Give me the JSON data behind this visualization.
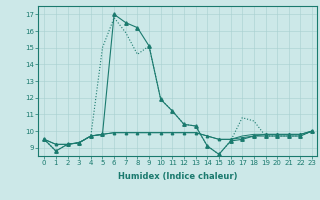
{
  "xlabel": "Humidex (Indice chaleur)",
  "bg_color": "#cce8e8",
  "line_color": "#1a7a6e",
  "xlim": [
    -0.5,
    23.4
  ],
  "ylim": [
    8.5,
    17.5
  ],
  "yticks": [
    9,
    10,
    11,
    12,
    13,
    14,
    15,
    16,
    17
  ],
  "xticks": [
    0,
    1,
    2,
    3,
    4,
    5,
    6,
    7,
    8,
    9,
    10,
    11,
    12,
    13,
    14,
    15,
    16,
    17,
    18,
    19,
    20,
    21,
    22,
    23
  ],
  "series": [
    {
      "x": [
        0,
        1,
        2,
        3,
        4,
        5,
        6,
        7,
        8,
        9,
        10,
        11,
        12,
        13,
        14,
        15,
        16,
        17,
        18,
        19,
        20,
        21,
        22,
        23
      ],
      "y": [
        9.5,
        8.8,
        9.2,
        9.3,
        9.7,
        9.8,
        17.0,
        16.5,
        16.2,
        15.1,
        11.9,
        11.2,
        10.4,
        10.3,
        9.1,
        8.6,
        9.4,
        9.5,
        9.7,
        9.7,
        9.7,
        9.7,
        9.7,
        10.0
      ],
      "style": "-",
      "marker": "^",
      "markersize": 2.5,
      "linewidth": 0.8
    },
    {
      "x": [
        0,
        1,
        2,
        3,
        4,
        5,
        6,
        7,
        8,
        9,
        10,
        11,
        12,
        13,
        14,
        15,
        16,
        17,
        18,
        19,
        20,
        21,
        22,
        23
      ],
      "y": [
        9.5,
        8.8,
        9.2,
        9.3,
        9.7,
        15.0,
        16.8,
        15.9,
        14.6,
        15.1,
        11.9,
        11.2,
        10.4,
        10.3,
        9.1,
        8.6,
        9.4,
        10.8,
        10.6,
        9.7,
        9.7,
        9.7,
        9.7,
        10.0
      ],
      "style": ":",
      "marker": null,
      "markersize": 0,
      "linewidth": 0.8
    },
    {
      "x": [
        0,
        1,
        2,
        3,
        4,
        5,
        6,
        7,
        8,
        9,
        10,
        11,
        12,
        13,
        14,
        15,
        16,
        17,
        18,
        19,
        20,
        21,
        22,
        23
      ],
      "y": [
        9.5,
        9.2,
        9.2,
        9.3,
        9.7,
        9.8,
        9.9,
        9.9,
        9.9,
        9.9,
        9.9,
        9.9,
        9.9,
        9.9,
        9.7,
        9.5,
        9.5,
        9.7,
        9.8,
        9.8,
        9.8,
        9.8,
        9.8,
        10.0
      ],
      "style": "-",
      "marker": null,
      "markersize": 0,
      "linewidth": 0.7
    },
    {
      "x": [
        0,
        1,
        2,
        3,
        4,
        5,
        6,
        7,
        8,
        9,
        10,
        11,
        12,
        13,
        14,
        15,
        16,
        17,
        18,
        19,
        20,
        21,
        22,
        23
      ],
      "y": [
        9.5,
        9.2,
        9.2,
        9.3,
        9.7,
        9.8,
        9.9,
        9.9,
        9.9,
        9.9,
        9.9,
        9.9,
        9.9,
        9.9,
        9.7,
        9.5,
        9.5,
        9.6,
        9.7,
        9.8,
        9.8,
        9.8,
        9.8,
        10.0
      ],
      "style": "-",
      "marker": "^",
      "markersize": 1.8,
      "linewidth": 0.7
    }
  ]
}
